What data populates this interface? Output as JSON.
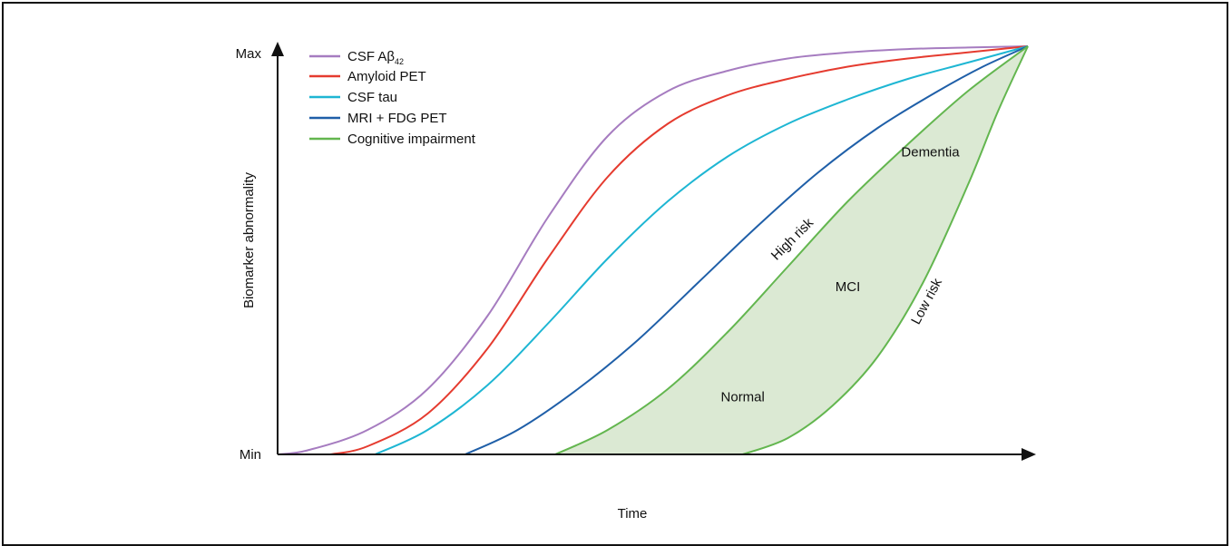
{
  "chart_data": {
    "type": "line",
    "title": "",
    "xlabel": "Time",
    "ylabel": "Biomarker abnormality",
    "y_tick_labels": [
      "Min",
      "Max"
    ],
    "ylim": [
      0,
      100
    ],
    "xlim": [
      0,
      100
    ],
    "legend_position": "top-left",
    "grid": false,
    "colors": {
      "csf_ab42": "#a67cc0",
      "amyloid_pet": "#e53b2f",
      "csf_tau": "#1eb6d3",
      "mri_fdg": "#1f5fa8",
      "cognitive": "#63b64f",
      "fill": "#dbe9d3"
    },
    "series": [
      {
        "key": "csf_ab42",
        "name": "CSF Aβ",
        "subscript": "42",
        "color": "#a67cc0",
        "x": [
          0,
          4,
          12,
          20,
          28,
          36,
          44,
          52,
          60,
          68,
          76,
          84,
          92,
          100
        ],
        "y": [
          0,
          1,
          6,
          16,
          34,
          58,
          78,
          89,
          94,
          97,
          98.5,
          99.3,
          99.7,
          100
        ]
      },
      {
        "key": "amyloid_pet",
        "name": "Amyloid PET",
        "color": "#e53b2f",
        "x": [
          7,
          12,
          20,
          28,
          36,
          44,
          52,
          60,
          68,
          76,
          84,
          92,
          100
        ],
        "y": [
          0,
          2,
          10,
          26,
          48,
          68,
          81,
          88,
          92,
          95,
          97,
          98.5,
          100
        ]
      },
      {
        "key": "csf_tau",
        "name": "CSF tau",
        "color": "#1eb6d3",
        "x": [
          13,
          20,
          28,
          36,
          44,
          52,
          60,
          68,
          76,
          84,
          92,
          100
        ],
        "y": [
          0,
          6,
          17,
          32,
          48,
          62,
          73,
          81,
          87,
          92,
          96,
          100
        ]
      },
      {
        "key": "mri_fdg",
        "name": "MRI + FDG PET",
        "color": "#1f5fa8",
        "x": [
          25,
          32,
          40,
          48,
          56,
          64,
          72,
          80,
          88,
          94,
          100
        ],
        "y": [
          0,
          6,
          16,
          28,
          42,
          56,
          69,
          80,
          89,
          95,
          100
        ]
      },
      {
        "key": "cognitive_high",
        "name": "Cognitive impairment",
        "color": "#63b64f",
        "x": [
          37,
          44,
          52,
          60,
          68,
          76,
          84,
          92,
          100
        ],
        "y": [
          0,
          6,
          16,
          30,
          46,
          62,
          76,
          89,
          100
        ]
      },
      {
        "key": "cognitive_low",
        "name": "",
        "color": "#63b64f",
        "x": [
          62,
          68,
          74,
          80,
          86,
          92,
          96,
          100
        ],
        "y": [
          0,
          4,
          12,
          24,
          42,
          66,
          84,
          100
        ]
      }
    ],
    "annotations": [
      {
        "text": "Dementia",
        "x": 87,
        "y": 73
      },
      {
        "text": "High risk",
        "x": 69,
        "y": 52,
        "rotate": -45
      },
      {
        "text": "MCI",
        "x": 76,
        "y": 40
      },
      {
        "text": "Low risk",
        "x": 87,
        "y": 37,
        "rotate": -62
      },
      {
        "text": "Normal",
        "x": 62,
        "y": 13
      }
    ]
  }
}
